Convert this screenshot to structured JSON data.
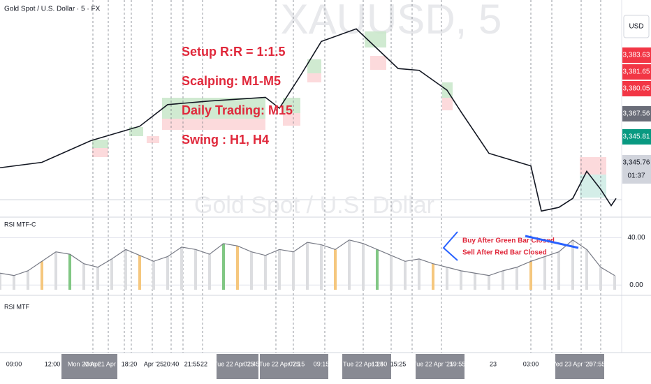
{
  "header": {
    "symbol": "Gold Spot / U.S. Dollar · 5 · FX",
    "currency": "USD",
    "watermark_symbol": "XAUUSD, 5",
    "watermark_name": "Gold Spot / U.S. Dollar"
  },
  "annotation": {
    "lines": [
      "Setup R:R = 1:1.5",
      "Scalping: M1-M5",
      "Daily Trading: M15",
      "Swing : H1, H4"
    ],
    "color": "#e0283b"
  },
  "price_tags": [
    {
      "label": "3,383.63",
      "color": "#f23645"
    },
    {
      "label": "3,381.65",
      "color": "#f23645"
    },
    {
      "label": "3,380.05",
      "color": "#f23645"
    },
    {
      "label": "3,367.56",
      "color": "#6a6d78"
    },
    {
      "label": "3,345.81",
      "color": "#089981"
    },
    {
      "label": "3,345.76",
      "color": "#d1d4dc"
    },
    {
      "label": "01:37",
      "color": "#d1d4dc"
    }
  ],
  "panes": {
    "rsi_c": "RSI MTF-C",
    "rsi": "RSI MTF",
    "buy_note": "Buy After Green Bar Closed",
    "sell_note": "Sell After Red Bar Closed"
  },
  "time_labels": [
    "09:00",
    "12:00",
    "Mon 21 Apr",
    "Mon 21 Apr '25",
    "18:20",
    "Apr '25",
    "20:40",
    "21:55",
    "22",
    "Tue 22 Apr '25",
    "02:45",
    "Tue 22 Apr '25",
    "07:15",
    "09:15",
    "Tue 22 Apr '25",
    "13:40",
    "15:25",
    "Tue 22 Apr '25",
    "19:55",
    "23",
    "03:00",
    "Wed 23 Apr '25",
    "07:55"
  ],
  "chart_data": [
    {
      "type": "line",
      "name": "price",
      "color": "#131722",
      "x": [
        0,
        60,
        130,
        200,
        240,
        300,
        380,
        400,
        430,
        460,
        510,
        540,
        570,
        600,
        640,
        660,
        700,
        760,
        775,
        800,
        820,
        840,
        860,
        875,
        882
      ],
      "values": [
        3307,
        3310,
        3322,
        3330,
        3342,
        3344,
        3346,
        3340,
        3358,
        3377,
        3384,
        3373,
        3362,
        3361,
        3350,
        3338,
        3315,
        3308,
        3283,
        3285,
        3290,
        3305,
        3295,
        3286,
        3290
      ],
      "xlim": [
        0,
        890
      ],
      "ylim": [
        3280,
        3400
      ]
    },
    {
      "type": "line",
      "name": "rsi",
      "color": "#787b86",
      "x": [
        0,
        20,
        40,
        60,
        80,
        100,
        120,
        140,
        160,
        180,
        200,
        220,
        240,
        260,
        280,
        300,
        320,
        340,
        360,
        380,
        400,
        420,
        440,
        460,
        480,
        500,
        520,
        540,
        560,
        580,
        600,
        620,
        640,
        660,
        680,
        700,
        720,
        740,
        760,
        780,
        800,
        820,
        840,
        860,
        880
      ],
      "values": [
        10,
        8,
        12,
        20,
        28,
        26,
        18,
        15,
        22,
        30,
        25,
        20,
        24,
        32,
        30,
        26,
        35,
        33,
        28,
        25,
        30,
        28,
        36,
        34,
        30,
        38,
        35,
        30,
        25,
        20,
        22,
        18,
        15,
        12,
        10,
        8,
        12,
        15,
        20,
        24,
        28,
        38,
        30,
        15,
        8
      ],
      "xlim": [
        0,
        890
      ],
      "ylim": [
        -4,
        52
      ],
      "yticks": [
        {
          "value": 40,
          "label": "40.00"
        },
        {
          "value": 0,
          "label": "0.00"
        }
      ]
    }
  ]
}
